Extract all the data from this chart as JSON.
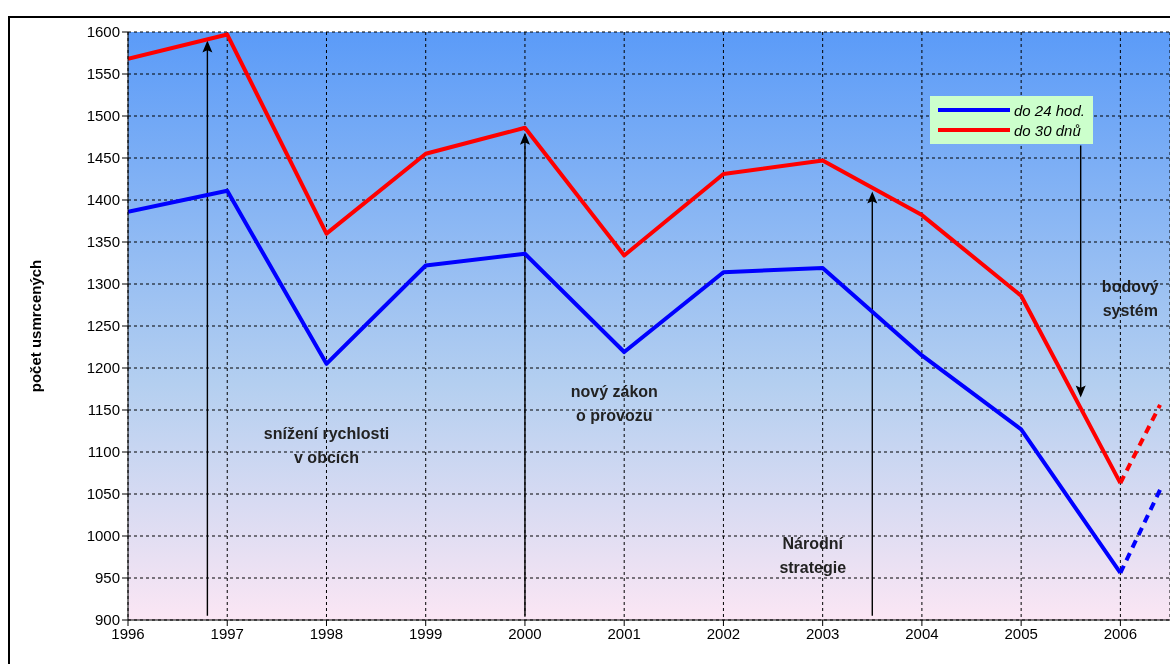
{
  "chart_data": {
    "type": "line",
    "ylabel": "počet usmrcených",
    "x": [
      1996,
      1997,
      1998,
      1999,
      2000,
      2001,
      2002,
      2003,
      2004,
      2005,
      2006,
      2006.4
    ],
    "series": [
      {
        "name": "do 24 hod.",
        "color": "#0000ff",
        "values": [
          1386,
          1411,
          1205,
          1322,
          1336,
          1219,
          1314,
          1319,
          1215,
          1127,
          956,
          null
        ]
      },
      {
        "name": "do 30 dnů",
        "color": "#ff0000",
        "values": [
          1568,
          1597,
          1360,
          1455,
          1486,
          1334,
          1431,
          1447,
          1382,
          1286,
          1063,
          null
        ]
      },
      {
        "color": "#0000ff",
        "values": [
          null,
          null,
          null,
          null,
          null,
          null,
          null,
          null,
          null,
          null,
          956,
          1055
        ],
        "line_style": "dashed"
      },
      {
        "color": "#ff0000",
        "values": [
          null,
          null,
          null,
          null,
          null,
          null,
          null,
          null,
          null,
          null,
          1063,
          1156
        ],
        "line_style": "dashed"
      }
    ],
    "xlim": [
      1996,
      2006.5
    ],
    "xticks": [
      1996,
      1997,
      1998,
      1999,
      2000,
      2001,
      2002,
      2003,
      2004,
      2005,
      2006
    ],
    "ylim": [
      900,
      1600
    ],
    "yticks": [
      900,
      950,
      1000,
      1050,
      1100,
      1150,
      1200,
      1250,
      1300,
      1350,
      1400,
      1450,
      1500,
      1550,
      1600
    ],
    "grid": true,
    "legend": "top right",
    "marker": "none",
    "line_style": "solid",
    "annotations": [
      "snížení rychlosti\nv obcích",
      "nový zákon\no provozu",
      "Národní\nstrategie",
      "bodový\nsystém"
    ]
  }
}
